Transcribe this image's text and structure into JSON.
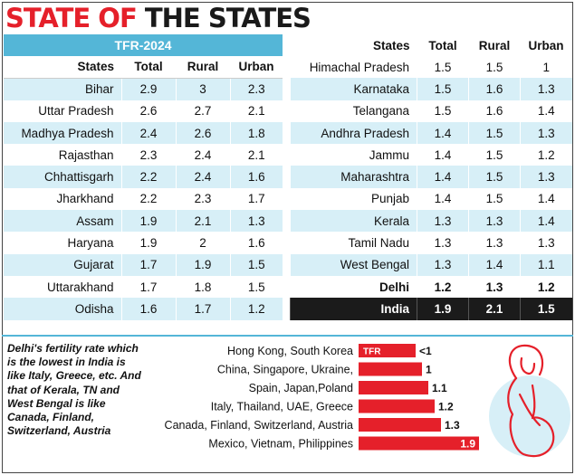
{
  "title": {
    "part1": "STATE OF",
    "part2": "THE STATES"
  },
  "table_banner": "TFR-2024",
  "columns": {
    "states": "States",
    "total": "Total",
    "rural": "Rural",
    "urban": "Urban"
  },
  "colors": {
    "red": "#e5202a",
    "blue": "#54b6d7",
    "light_blue": "#d7eff7",
    "dark": "#1b1b1b"
  },
  "note": "Delhi's fertility rate which is the lowest in India is like Italy, Greece, etc. And that of Kerala, TN and West Bengal is like Canada, Finland, Switzerland, Austria",
  "chart_data": [
    {
      "type": "table",
      "title": "TFR-2024",
      "columns": [
        "States",
        "Total",
        "Rural",
        "Urban"
      ],
      "rows": [
        {
          "state": "Bihar",
          "total": "2.9",
          "rural": "3",
          "urban": "2.3"
        },
        {
          "state": "Uttar Pradesh",
          "total": "2.6",
          "rural": "2.7",
          "urban": "2.1"
        },
        {
          "state": "Madhya Pradesh",
          "total": "2.4",
          "rural": "2.6",
          "urban": "1.8"
        },
        {
          "state": "Rajasthan",
          "total": "2.3",
          "rural": "2.4",
          "urban": "2.1"
        },
        {
          "state": "Chhattisgarh",
          "total": "2.2",
          "rural": "2.4",
          "urban": "1.6"
        },
        {
          "state": "Jharkhand",
          "total": "2.2",
          "rural": "2.3",
          "urban": "1.7"
        },
        {
          "state": "Assam",
          "total": "1.9",
          "rural": "2.1",
          "urban": "1.3"
        },
        {
          "state": "Haryana",
          "total": "1.9",
          "rural": "2",
          "urban": "1.6"
        },
        {
          "state": "Gujarat",
          "total": "1.7",
          "rural": "1.9",
          "urban": "1.5"
        },
        {
          "state": "Uttarakhand",
          "total": "1.7",
          "rural": "1.8",
          "urban": "1.5"
        },
        {
          "state": "Odisha",
          "total": "1.6",
          "rural": "1.7",
          "urban": "1.2"
        },
        {
          "state": "Himachal Pradesh",
          "total": "1.5",
          "rural": "1.5",
          "urban": "1"
        },
        {
          "state": "Karnataka",
          "total": "1.5",
          "rural": "1.6",
          "urban": "1.3"
        },
        {
          "state": "Telangana",
          "total": "1.5",
          "rural": "1.6",
          "urban": "1.4"
        },
        {
          "state": "Andhra Pradesh",
          "total": "1.4",
          "rural": "1.5",
          "urban": "1.3"
        },
        {
          "state": "Jammu",
          "total": "1.4",
          "rural": "1.5",
          "urban": "1.2"
        },
        {
          "state": "Maharashtra",
          "total": "1.4",
          "rural": "1.5",
          "urban": "1.3"
        },
        {
          "state": "Punjab",
          "total": "1.4",
          "rural": "1.5",
          "urban": "1.4"
        },
        {
          "state": "Kerala",
          "total": "1.3",
          "rural": "1.3",
          "urban": "1.4"
        },
        {
          "state": "Tamil Nadu",
          "total": "1.3",
          "rural": "1.3",
          "urban": "1.3"
        },
        {
          "state": "West Bengal",
          "total": "1.3",
          "rural": "1.4",
          "urban": "1.1"
        },
        {
          "state": "Delhi",
          "total": "1.2",
          "rural": "1.3",
          "urban": "1.2",
          "bold": true
        },
        {
          "state": "India",
          "total": "1.9",
          "rural": "2.1",
          "urban": "1.5",
          "highlight": true
        }
      ]
    },
    {
      "type": "bar",
      "orientation": "horizontal",
      "categories": [
        "Hong Kong, South Korea",
        "China, Singapore, Ukraine,",
        "Spain, Japan,Poland",
        "Italy, Thailand, UAE, Greece",
        "Canada, Finland, Switzerland, Austria",
        "Mexico, Vietnam, Philippines"
      ],
      "values": [
        0.9,
        1.0,
        1.1,
        1.2,
        1.3,
        1.9
      ],
      "value_labels": [
        "<1",
        "1",
        "1.1",
        "1.2",
        "1.3",
        "1.9"
      ],
      "bar_tag": "TFR",
      "bar_color": "#e5202a"
    }
  ]
}
